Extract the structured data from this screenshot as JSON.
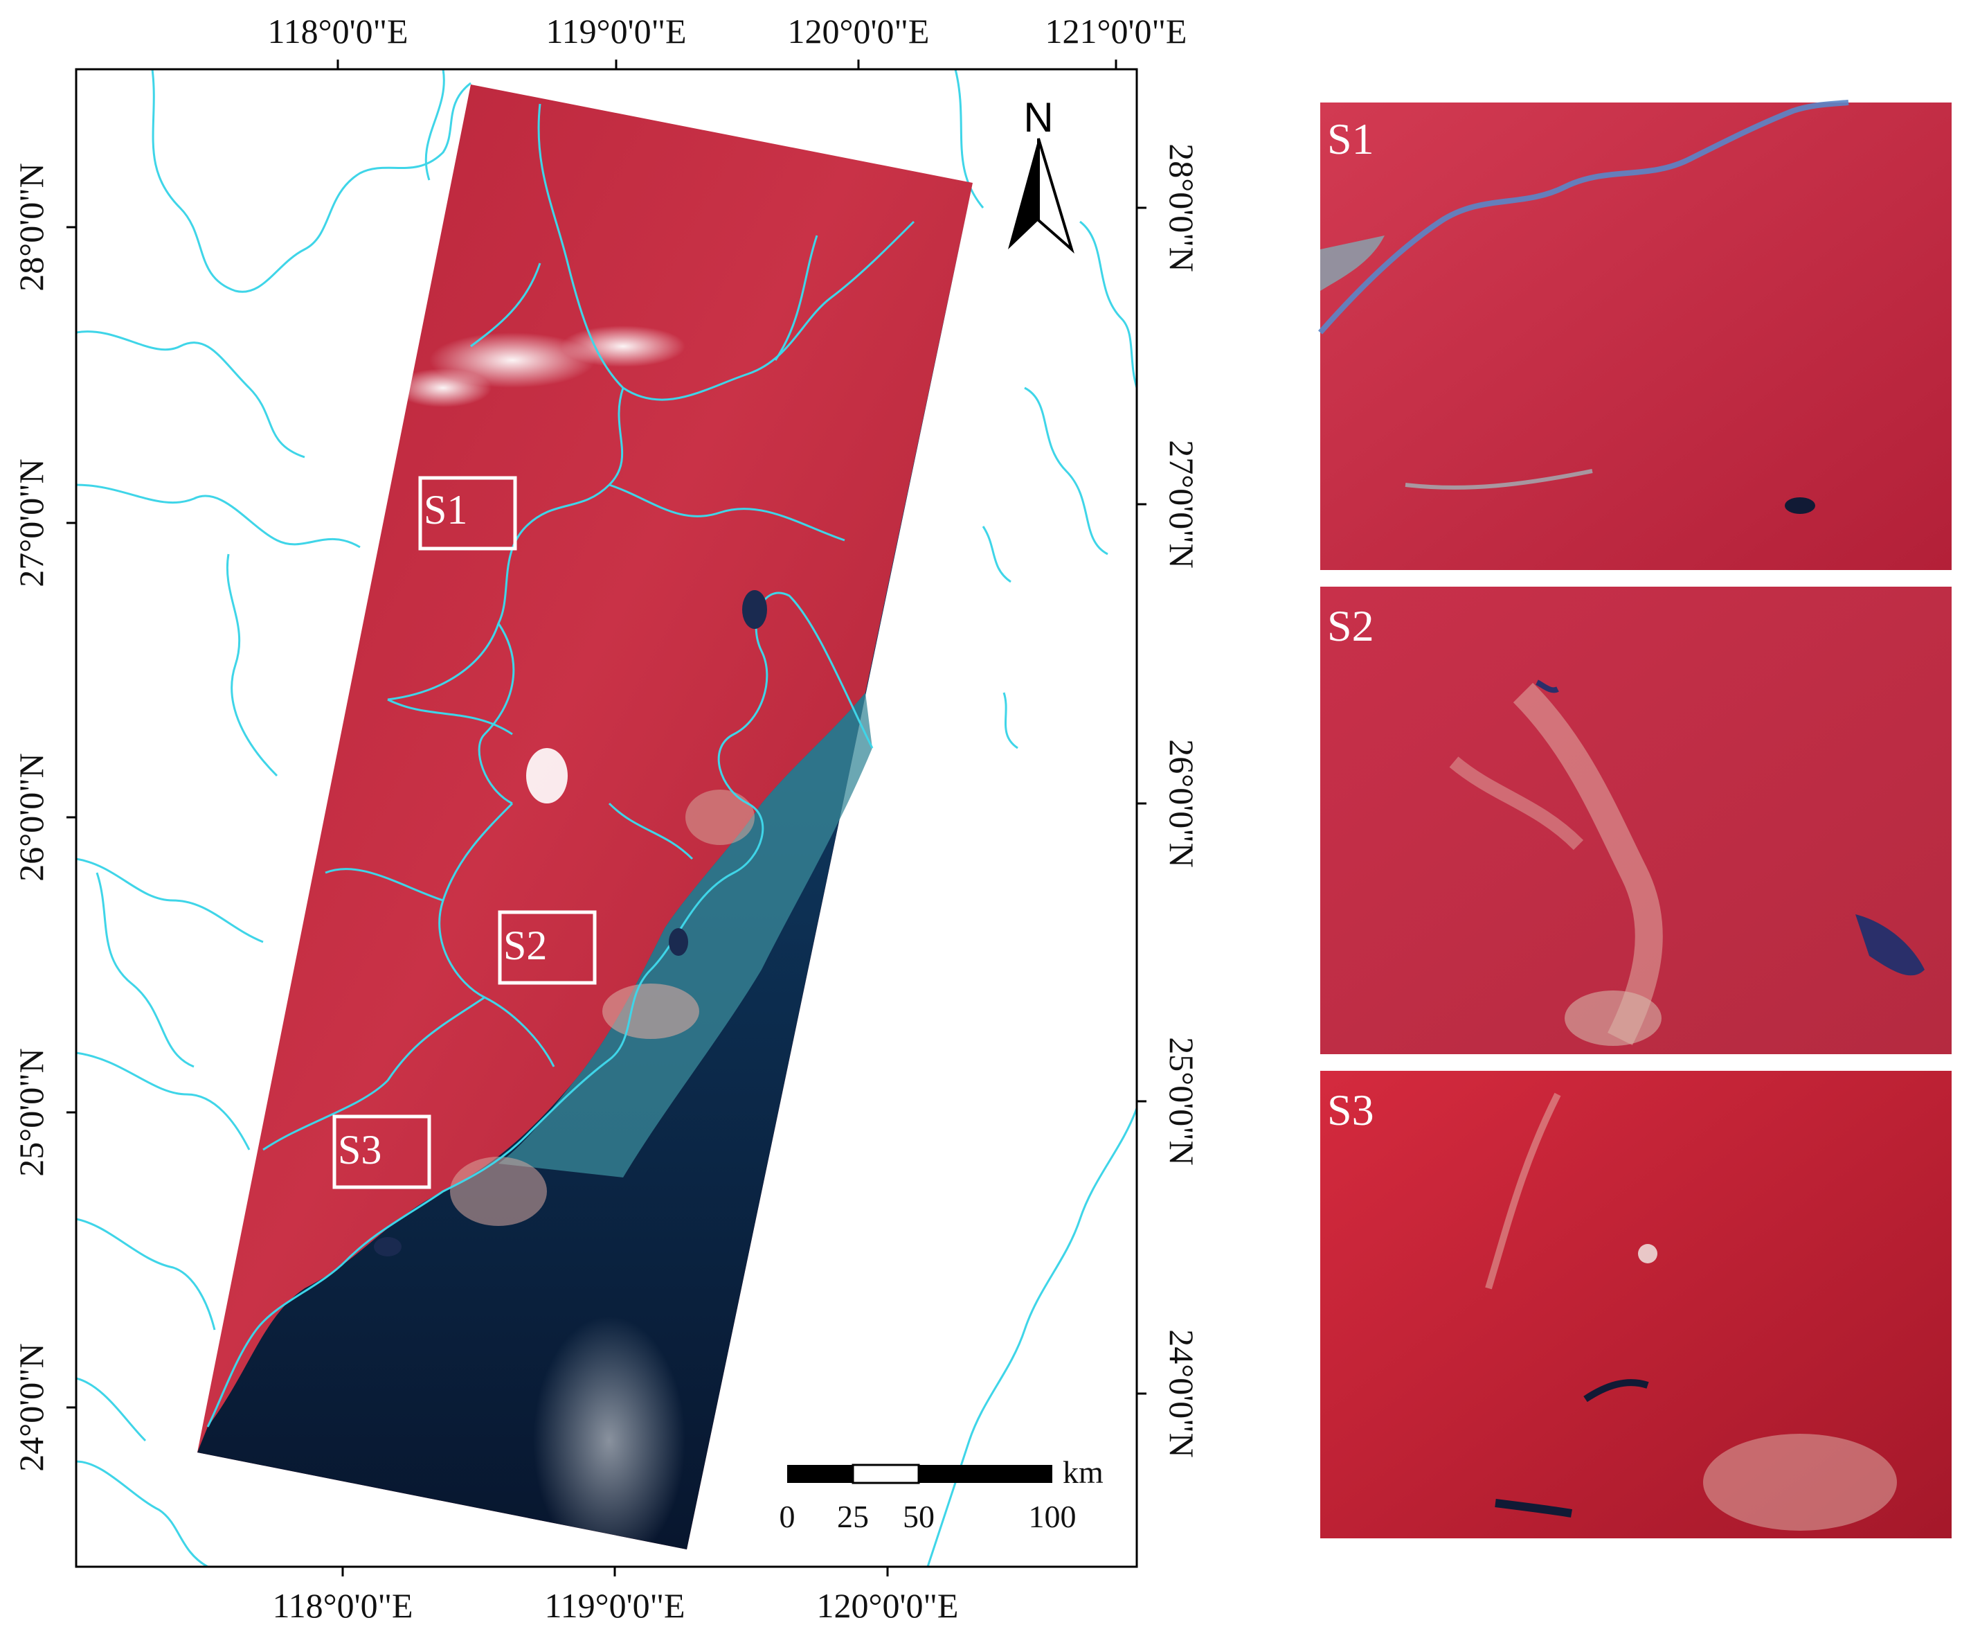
{
  "map": {
    "top_ticks": [
      "118°0'0\"E",
      "119°0'0\"E",
      "120°0'0\"E",
      "121°0'0\"E"
    ],
    "bottom_ticks": [
      "118°0'0\"E",
      "119°0'0\"E",
      "120°0'0\"E"
    ],
    "left_ticks": [
      "28°0'0\"N",
      "27°0'0\"N",
      "26°0'0\"N",
      "25°0'0\"N",
      "24°0'0\"N"
    ],
    "right_ticks": [
      "28°0'0\"N",
      "27°0'0\"N",
      "26°0'0\"N",
      "25°0'0\"N",
      "24°0'0\"N"
    ],
    "north_arrow": "N",
    "scale_bar": {
      "unit": "km",
      "labels": [
        "0",
        "25",
        "50",
        "100"
      ]
    },
    "study_boxes": [
      "S1",
      "S2",
      "S3"
    ],
    "colors": {
      "boundary": "#3fd5e8",
      "vegetation": "#c42a3c",
      "sea": "#0b1a35"
    }
  },
  "panels": [
    {
      "label": "S1"
    },
    {
      "label": "S2"
    },
    {
      "label": "S3"
    }
  ]
}
